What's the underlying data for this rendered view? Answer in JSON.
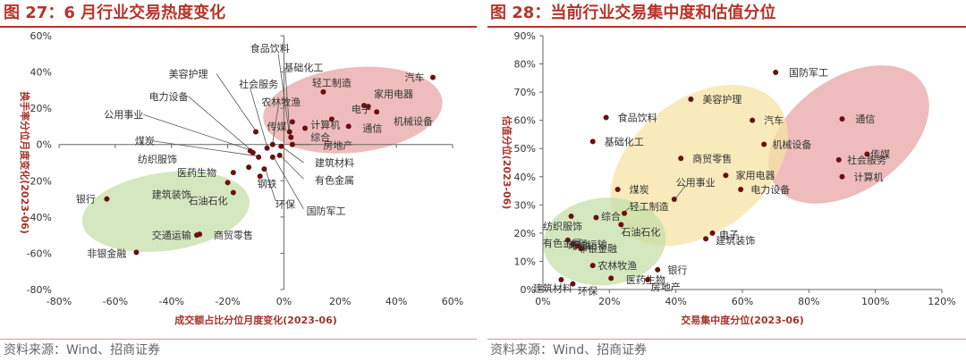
{
  "charts": [
    {
      "fig_title": "图 27：6 月行业交易热度变化",
      "source": "资料来源：Wind、招商证券",
      "chart_data": {
        "type": "scatter",
        "xlabel": "成交额占比分位月度变化(2023-06)",
        "ylabel": "换手率分位月度变化(2023-06)",
        "xlim": [
          -0.8,
          0.6
        ],
        "ylim": [
          -0.8,
          0.6
        ],
        "xticks": [
          "-80%",
          "-60%",
          "-40%",
          "-20%",
          "0%",
          "20%",
          "40%",
          "60%"
        ],
        "yticks": [
          "-80%",
          "-60%",
          "-40%",
          "-20%",
          "0%",
          "20%",
          "40%",
          "60%"
        ],
        "tick_values": [
          -0.8,
          -0.6,
          -0.4,
          -0.2,
          0,
          0.2,
          0.4,
          0.6
        ],
        "colors": {
          "point": "#6b0f0f",
          "ellipse_hot": "#e8a6a6",
          "ellipse_cold": "#c7dfa8",
          "axis": "#666666",
          "leader": "#555555"
        },
        "groups": [
          {
            "color": "ellipse_hot",
            "cx": 0.245,
            "cy": 0.19,
            "rx": 0.32,
            "ry": 0.235,
            "rot": -6
          },
          {
            "color": "ellipse_cold",
            "cx": -0.42,
            "cy": -0.37,
            "rx": 0.3,
            "ry": 0.215,
            "rot": -8
          }
        ],
        "points": [
          {
            "label": "汽车",
            "x": 0.53,
            "y": 0.37,
            "lx": 0.43,
            "ly": 0.37
          },
          {
            "label": "机械设备",
            "x": 0.33,
            "y": 0.18,
            "lx": 0.39,
            "ly": 0.13
          },
          {
            "label": "家用电器",
            "x": 0.3,
            "y": 0.21,
            "lx": 0.32,
            "ly": 0.28
          },
          {
            "label": "电子",
            "x": 0.285,
            "y": 0.215,
            "lx": 0.24,
            "ly": 0.195
          },
          {
            "label": "通信",
            "x": 0.23,
            "y": 0.1,
            "lx": 0.28,
            "ly": 0.09
          },
          {
            "label": "计算机",
            "x": 0.17,
            "y": 0.14,
            "lx": 0.095,
            "ly": 0.11
          },
          {
            "label": "轻工制造",
            "x": 0.14,
            "y": 0.29,
            "lx": 0.1,
            "ly": 0.34
          },
          {
            "label": "综合",
            "x": 0.075,
            "y": 0.09,
            "lx": 0.095,
            "ly": 0.04
          },
          {
            "label": "传媒",
            "x": 0.03,
            "y": 0.125,
            "lx": -0.06,
            "ly": 0.1
          },
          {
            "label": "基础化工",
            "x": 0.02,
            "y": 0.07,
            "lx": 0.0,
            "ly": 0.425,
            "leader": [
              [
                0.005,
                0.4
              ],
              [
                0.02,
                0.08
              ]
            ]
          },
          {
            "label": "食品饮料",
            "x": 0.025,
            "y": 0.04,
            "lx": -0.12,
            "ly": 0.53,
            "leader": [
              [
                -0.02,
                0.5
              ],
              [
                0.02,
                0.05
              ]
            ]
          },
          {
            "label": "房地产",
            "x": 0.03,
            "y": 0.0,
            "lx": 0.14,
            "ly": -0.005,
            "leader": [
              [
                0.095,
                0.0
              ],
              [
                0.04,
                0.0
              ]
            ]
          },
          {
            "label": "建筑材料",
            "x": -0.01,
            "y": -0.01,
            "lx": 0.11,
            "ly": -0.1,
            "leader": [
              [
                0.07,
                -0.1
              ],
              [
                -0.005,
                -0.015
              ]
            ]
          },
          {
            "label": "有色金属",
            "x": -0.015,
            "y": -0.06,
            "lx": 0.11,
            "ly": -0.195,
            "leader": [
              [
                0.07,
                -0.19
              ],
              [
                -0.01,
                -0.065
              ]
            ]
          },
          {
            "label": "环保",
            "x": -0.07,
            "y": -0.135,
            "lx": -0.03,
            "ly": -0.33,
            "leader": [
              [
                -0.03,
                -0.31
              ],
              [
                -0.065,
                -0.14
              ]
            ]
          },
          {
            "label": "国防军工",
            "x": -0.04,
            "y": -0.07,
            "lx": 0.08,
            "ly": -0.365,
            "leader": [
              [
                0.07,
                -0.355
              ],
              [
                -0.035,
                -0.075
              ]
            ]
          },
          {
            "label": "农林牧渔",
            "x": -0.04,
            "y": 0.0,
            "lx": -0.08,
            "ly": 0.235,
            "leader": [
              [
                -0.02,
                0.21
              ],
              [
                -0.04,
                0.01
              ]
            ]
          },
          {
            "label": "社会服务",
            "x": -0.06,
            "y": -0.02,
            "lx": -0.16,
            "ly": 0.335,
            "leader": [
              [
                -0.12,
                0.31
              ],
              [
                -0.06,
                -0.01
              ]
            ]
          },
          {
            "label": "美容护理",
            "x": -0.1,
            "y": 0.07,
            "lx": -0.41,
            "ly": 0.39,
            "leader": [
              [
                -0.24,
                0.39
              ],
              [
                -0.1,
                0.075
              ]
            ]
          },
          {
            "label": "电力设备",
            "x": -0.11,
            "y": -0.045,
            "lx": -0.48,
            "ly": 0.265,
            "leader": [
              [
                -0.34,
                0.265
              ],
              [
                -0.11,
                -0.04
              ]
            ]
          },
          {
            "label": "公用事业",
            "x": -0.12,
            "y": -0.035,
            "lx": -0.64,
            "ly": 0.165,
            "leader": [
              [
                -0.5,
                0.165
              ],
              [
                -0.12,
                -0.03
              ]
            ]
          },
          {
            "label": "煤炭",
            "x": -0.09,
            "y": -0.07,
            "lx": -0.53,
            "ly": 0.02,
            "leader": [
              [
                -0.47,
                0.02
              ],
              [
                -0.09,
                -0.065
              ]
            ]
          },
          {
            "label": "纺织服饰",
            "x": -0.125,
            "y": -0.125,
            "lx": -0.52,
            "ly": -0.08
          },
          {
            "label": "医药生物",
            "x": -0.18,
            "y": -0.155,
            "lx": -0.38,
            "ly": -0.155
          },
          {
            "label": "钢铁",
            "x": -0.085,
            "y": -0.175,
            "lx": -0.095,
            "ly": -0.215
          },
          {
            "label": "建筑装饰",
            "x": -0.2,
            "y": -0.21,
            "lx": -0.47,
            "ly": -0.275
          },
          {
            "label": "石油石化",
            "x": -0.18,
            "y": -0.265,
            "lx": -0.34,
            "ly": -0.31
          },
          {
            "label": "银行",
            "x": -0.63,
            "y": -0.3,
            "lx": -0.74,
            "ly": -0.3
          },
          {
            "label": "交通运输",
            "x": -0.31,
            "y": -0.5,
            "lx": -0.47,
            "ly": -0.5
          },
          {
            "label": "商贸零售",
            "x": -0.3,
            "y": -0.495,
            "lx": -0.25,
            "ly": -0.5
          },
          {
            "label": "非银金融",
            "x": -0.525,
            "y": -0.595,
            "lx": -0.7,
            "ly": -0.6
          }
        ]
      }
    },
    {
      "fig_title": "图 28：当前行业交易集中度和估值分位",
      "source": "资料来源：Wind、招商证券",
      "chart_data": {
        "type": "scatter",
        "xlabel": "交易集中度分位(2023-06)",
        "ylabel": "估值分位(2023-06)",
        "xlim": [
          0,
          1.2
        ],
        "ylim": [
          0,
          0.9
        ],
        "xticks": [
          "0%",
          "20%",
          "40%",
          "60%",
          "80%",
          "100%",
          "120%"
        ],
        "x_tick_values": [
          0,
          0.2,
          0.4,
          0.6,
          0.8,
          1.0,
          1.2
        ],
        "yticks": [
          "0%",
          "10%",
          "20%",
          "30%",
          "40%",
          "50%",
          "60%",
          "70%",
          "80%",
          "90%"
        ],
        "y_tick_values": [
          0,
          0.1,
          0.2,
          0.3,
          0.4,
          0.5,
          0.6,
          0.7,
          0.8,
          0.9
        ],
        "colors": {
          "point": "#6b0f0f",
          "ellipse_hot": "#e8a6a6",
          "ellipse_mid": "#f6e3a4",
          "ellipse_cold": "#c7dfa8",
          "axis": "#666666",
          "leader": "#555555"
        },
        "groups": [
          {
            "color": "ellipse_hot",
            "cx": 0.92,
            "cy": 0.55,
            "rx": 0.27,
            "ry": 0.2,
            "rot": -35
          },
          {
            "color": "ellipse_mid",
            "cx": 0.47,
            "cy": 0.44,
            "rx": 0.3,
            "ry": 0.235,
            "rot": -38
          },
          {
            "color": "ellipse_cold",
            "cx": 0.185,
            "cy": 0.17,
            "rx": 0.185,
            "ry": 0.155,
            "rot": -5
          }
        ],
        "points": [
          {
            "label": "国防军工",
            "x": 0.7,
            "y": 0.77,
            "lx": 0.74,
            "ly": 0.77
          },
          {
            "label": "通信",
            "x": 0.9,
            "y": 0.605,
            "lx": 0.94,
            "ly": 0.605
          },
          {
            "label": "汽车",
            "x": 0.63,
            "y": 0.6,
            "lx": 0.665,
            "ly": 0.6
          },
          {
            "label": "机械设备",
            "x": 0.665,
            "y": 0.515,
            "lx": 0.69,
            "ly": 0.515
          },
          {
            "label": "传媒",
            "x": 0.975,
            "y": 0.48,
            "lx": 0.985,
            "ly": 0.48
          },
          {
            "label": "社会服务",
            "x": 0.89,
            "y": 0.46,
            "lx": 0.915,
            "ly": 0.46
          },
          {
            "label": "计算机",
            "x": 0.9,
            "y": 0.4,
            "lx": 0.935,
            "ly": 0.4
          },
          {
            "label": "美容护理",
            "x": 0.445,
            "y": 0.675,
            "lx": 0.48,
            "ly": 0.675
          },
          {
            "label": "食品饮料",
            "x": 0.19,
            "y": 0.61,
            "lx": 0.225,
            "ly": 0.61
          },
          {
            "label": "基础化工",
            "x": 0.15,
            "y": 0.525,
            "lx": 0.185,
            "ly": 0.525
          },
          {
            "label": "商贸零售",
            "x": 0.415,
            "y": 0.465,
            "lx": 0.45,
            "ly": 0.465
          },
          {
            "label": "家用电器",
            "x": 0.55,
            "y": 0.405,
            "lx": 0.58,
            "ly": 0.405
          },
          {
            "label": "电力设备",
            "x": 0.595,
            "y": 0.355,
            "lx": 0.625,
            "ly": 0.355
          },
          {
            "label": "公用事业",
            "x": 0.395,
            "y": 0.32,
            "lx": 0.4,
            "ly": 0.38,
            "leader": [
              [
                0.43,
                0.37
              ],
              [
                0.4,
                0.325
              ]
            ]
          },
          {
            "label": "煤炭",
            "x": 0.225,
            "y": 0.355,
            "lx": 0.26,
            "ly": 0.355
          },
          {
            "label": "轻工制造",
            "x": 0.245,
            "y": 0.27,
            "lx": 0.26,
            "ly": 0.295,
            "leader": [
              [
                0.26,
                0.29
              ],
              [
                0.245,
                0.275
              ]
            ]
          },
          {
            "label": "电子",
            "x": 0.51,
            "y": 0.2,
            "lx": 0.53,
            "ly": 0.195
          },
          {
            "label": "建筑装饰",
            "x": 0.49,
            "y": 0.18,
            "lx": 0.52,
            "ly": 0.175
          },
          {
            "label": "石油石化",
            "x": 0.235,
            "y": 0.23,
            "lx": 0.235,
            "ly": 0.205
          },
          {
            "label": "综合",
            "x": 0.16,
            "y": 0.255,
            "lx": 0.175,
            "ly": 0.26
          },
          {
            "label": "纺织服饰",
            "x": 0.085,
            "y": 0.26,
            "lx": 0.0,
            "ly": 0.225
          },
          {
            "label": "有色金属",
            "x": 0.075,
            "y": 0.175,
            "lx": 0.0,
            "ly": 0.165
          },
          {
            "label": "交通运输",
            "x": 0.09,
            "y": 0.16,
            "lx": 0.075,
            "ly": 0.16
          },
          {
            "label": "钢铁",
            "x": 0.105,
            "y": 0.155,
            "lx": 0.085,
            "ly": 0.155
          },
          {
            "label": "非银金融",
            "x": 0.115,
            "y": 0.145,
            "lx": 0.105,
            "ly": 0.145
          },
          {
            "label": "银行",
            "x": 0.345,
            "y": 0.07,
            "lx": 0.375,
            "ly": 0.07
          },
          {
            "label": "农林牧渔",
            "x": 0.15,
            "y": 0.085,
            "lx": 0.165,
            "ly": 0.085
          },
          {
            "label": "医药生物",
            "x": 0.205,
            "y": 0.04,
            "lx": 0.25,
            "ly": 0.035
          },
          {
            "label": "房地产",
            "x": 0.315,
            "y": 0.035,
            "lx": 0.325,
            "ly": 0.01
          },
          {
            "label": "建筑材料",
            "x": 0.055,
            "y": 0.035,
            "lx": -0.03,
            "ly": 0.005
          },
          {
            "label": "环保",
            "x": 0.09,
            "y": 0.02,
            "lx": 0.105,
            "ly": -0.005
          }
        ]
      }
    }
  ]
}
